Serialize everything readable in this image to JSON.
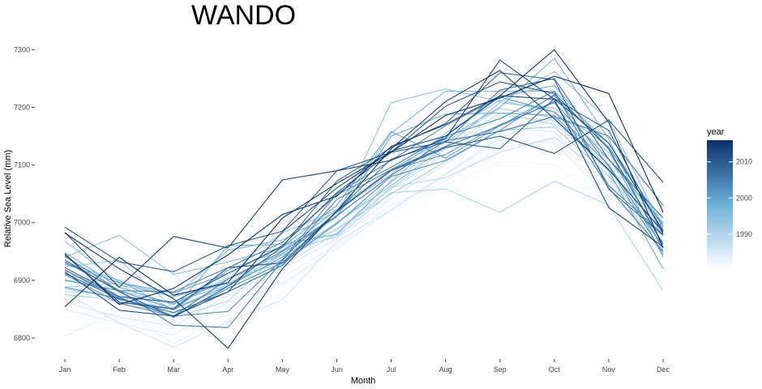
{
  "chart_data": {
    "type": "line",
    "title": "WANDO",
    "xlabel": "Month",
    "ylabel": "Relative Sea Level (mm)",
    "categories": [
      "Jan",
      "Feb",
      "Mar",
      "Apr",
      "May",
      "Jun",
      "Jul",
      "Aug",
      "Sep",
      "Oct",
      "Nov",
      "Dec"
    ],
    "ylim": [
      6755,
      7310
    ],
    "yticks": [
      6800,
      6900,
      7000,
      7100,
      7200,
      7300
    ],
    "grid": false,
    "legend": {
      "title": "year",
      "position": "right",
      "range": [
        1981,
        2016
      ],
      "labels": [
        1990,
        2000,
        2010
      ],
      "colors": [
        "#f7fbff",
        "#6baed6",
        "#08306b"
      ]
    },
    "series": [
      {
        "year": 1981,
        "values": [
          6815,
          6813,
          6818,
          6858,
          6878,
          6950,
          7010,
          7060,
          7100,
          7095,
          7030,
          6975
        ]
      },
      {
        "year": 1982,
        "values": [
          6845,
          6840,
          6832,
          6866,
          6890,
          6960,
          7020,
          7065,
          7105,
          7100,
          7035,
          6980
        ]
      },
      {
        "year": 1983,
        "values": [
          6803,
          6848,
          6790,
          6842,
          6905,
          6962,
          7030,
          7072,
          7130,
          7145,
          7050,
          6962
        ]
      },
      {
        "year": 1984,
        "values": [
          6850,
          6825,
          6805,
          6862,
          6895,
          6955,
          7022,
          7082,
          7143,
          7138,
          7045,
          6980
        ]
      },
      {
        "year": 1985,
        "values": [
          6862,
          6836,
          6820,
          6874,
          6920,
          6972,
          7042,
          7102,
          7164,
          7158,
          7064,
          6992
        ]
      },
      {
        "year": 1986,
        "values": [
          6878,
          6826,
          6784,
          6828,
          6866,
          6967,
          7022,
          7085,
          7147,
          7180,
          7097,
          6985
        ]
      },
      {
        "year": 1987,
        "values": [
          6895,
          6860,
          6842,
          6885,
          6933,
          6990,
          7058,
          7118,
          7185,
          7177,
          7090,
          6997
        ]
      },
      {
        "year": 1988,
        "values": [
          6880,
          6877,
          6838,
          6880,
          6925,
          6982,
          7062,
          7078,
          7122,
          7148,
          7080,
          6943
        ]
      },
      {
        "year": 1989,
        "values": [
          6875,
          6866,
          6852,
          6892,
          6945,
          6978,
          7060,
          7128,
          7190,
          7170,
          7098,
          6957
        ]
      },
      {
        "year": 1990,
        "values": [
          6888,
          6895,
          6835,
          6864,
          6952,
          6975,
          7052,
          7058,
          7018,
          7072,
          7030,
          6882
        ]
      },
      {
        "year": 1991,
        "values": [
          6902,
          6882,
          6860,
          6905,
          6928,
          7000,
          7070,
          7140,
          7198,
          7182,
          7110,
          6978
        ]
      },
      {
        "year": 1992,
        "values": [
          6885,
          6870,
          6862,
          6892,
          6944,
          6988,
          7050,
          7106,
          7160,
          7166,
          7082,
          6966
        ]
      },
      {
        "year": 1993,
        "values": [
          6923,
          6935,
          6852,
          6918,
          6982,
          7022,
          7084,
          7155,
          7212,
          7192,
          7122,
          6985
        ]
      },
      {
        "year": 1994,
        "values": [
          6940,
          6978,
          6910,
          6932,
          6957,
          7010,
          7208,
          7232,
          7210,
          7262,
          7178,
          6988
        ]
      },
      {
        "year": 1995,
        "values": [
          6910,
          6892,
          6872,
          6894,
          6936,
          7000,
          7064,
          7132,
          7208,
          7198,
          7132,
          6992
        ]
      },
      {
        "year": 1996,
        "values": [
          6968,
          6896,
          6872,
          6952,
          6970,
          7020,
          7155,
          7228,
          7228,
          7228,
          7138,
          6998
        ]
      },
      {
        "year": 1997,
        "values": [
          6930,
          6900,
          6848,
          6918,
          6952,
          7022,
          7092,
          7145,
          7200,
          7285,
          7145,
          6950
        ]
      },
      {
        "year": 1998,
        "values": [
          6918,
          6866,
          6850,
          6960,
          6962,
          6980,
          7072,
          7150,
          7218,
          7238,
          7128,
          6940
        ]
      },
      {
        "year": 1999,
        "values": [
          6948,
          6888,
          6858,
          6902,
          6946,
          7010,
          7150,
          7188,
          7190,
          7186,
          7090,
          6920
        ]
      },
      {
        "year": 2000,
        "values": [
          6928,
          6896,
          6878,
          6912,
          6958,
          7030,
          7158,
          7112,
          7168,
          7220,
          7130,
          6994
        ]
      },
      {
        "year": 2001,
        "values": [
          6900,
          6882,
          6850,
          6890,
          6940,
          7018,
          7092,
          7118,
          7170,
          7208,
          7110,
          6998
        ]
      },
      {
        "year": 2002,
        "values": [
          6888,
          6868,
          6838,
          6886,
          6930,
          6998,
          7080,
          7108,
          7160,
          7222,
          7098,
          6945
        ]
      },
      {
        "year": 2003,
        "values": [
          6910,
          6860,
          6838,
          6846,
          6936,
          7050,
          7108,
          7168,
          7218,
          7192,
          7100,
          6958
        ]
      },
      {
        "year": 2004,
        "values": [
          6942,
          6882,
          6880,
          6922,
          6966,
          7048,
          7096,
          7150,
          7180,
          7228,
          7064,
          6980
        ]
      },
      {
        "year": 2005,
        "values": [
          6932,
          6882,
          6822,
          6818,
          6934,
          7040,
          7092,
          7132,
          7168,
          7210,
          7060,
          6950
        ]
      },
      {
        "year": 2006,
        "values": [
          6918,
          6870,
          6838,
          6902,
          6950,
          7012,
          7082,
          7142,
          7158,
          7184,
          7150,
          7030
        ]
      },
      {
        "year": 2007,
        "values": [
          6912,
          6868,
          6844,
          6880,
          6926,
          7020,
          7110,
          7140,
          7230,
          7250,
          7110,
          7008
        ]
      },
      {
        "year": 2008,
        "values": [
          6935,
          6880,
          6836,
          6890,
          6958,
          7072,
          7130,
          7172,
          7260,
          7248,
          7058,
          6978
        ]
      },
      {
        "year": 2009,
        "values": [
          6992,
          6932,
          6915,
          6960,
          6985,
          7090,
          7122,
          7140,
          7128,
          7215,
          7160,
          6980
        ]
      },
      {
        "year": 2010,
        "values": [
          6922,
          6872,
          6862,
          6912,
          6960,
          7052,
          7122,
          7202,
          7244,
          7224,
          7128,
          6962
        ]
      },
      {
        "year": 2011,
        "values": [
          6944,
          6862,
          6850,
          6922,
          6930,
          7020,
          7090,
          7130,
          7150,
          7120,
          7178,
          7070
        ]
      },
      {
        "year": 2012,
        "values": [
          6915,
          6848,
          6838,
          6880,
          6984,
          7060,
          7124,
          7150,
          7220,
          7214,
          7138,
          6986
        ]
      },
      {
        "year": 2013,
        "values": [
          6983,
          6888,
          6976,
          6956,
          7074,
          7090,
          7108,
          7146,
          7282,
          7214,
          7026,
          6958
        ]
      },
      {
        "year": 2014,
        "values": [
          6982,
          6920,
          6868,
          6782,
          6920,
          7020,
          7128,
          7210,
          7264,
          7180,
          7092,
          6984
        ]
      },
      {
        "year": 2015,
        "values": [
          6946,
          6858,
          6886,
          6944,
          7014,
          7046,
          7132,
          7170,
          7220,
          7300,
          7174,
          6956
        ]
      },
      {
        "year": 2016,
        "values": [
          6854,
          6940,
          6874,
          6896,
          7008,
          7068,
          7122,
          7186,
          7216,
          7254,
          7224,
          7018
        ]
      }
    ]
  }
}
